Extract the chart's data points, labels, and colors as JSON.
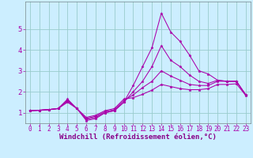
{
  "bg_color": "#cceeff",
  "line_color": "#aa00aa",
  "marker": "*",
  "xlabel": "Windchill (Refroidissement éolien,°C)",
  "xlabel_color": "#880088",
  "xlabel_fontsize": 6.5,
  "xtick_fontsize": 5.5,
  "ytick_fontsize": 6.5,
  "grid_color": "#99cccc",
  "xlim": [
    -0.5,
    23.5
  ],
  "ylim": [
    0.5,
    6.3
  ],
  "yticks": [
    1,
    2,
    3,
    4,
    5
  ],
  "xticks": [
    0,
    1,
    2,
    3,
    4,
    5,
    6,
    7,
    8,
    9,
    10,
    11,
    12,
    13,
    14,
    15,
    16,
    17,
    18,
    19,
    20,
    21,
    22,
    23
  ],
  "lines": [
    [
      1.1,
      1.12,
      1.15,
      1.2,
      1.65,
      1.2,
      0.63,
      0.72,
      1.0,
      1.1,
      1.5,
      2.3,
      3.2,
      4.1,
      5.75,
      4.85,
      4.4,
      3.75,
      3.0,
      2.85,
      2.55,
      2.5,
      2.5,
      1.85
    ],
    [
      1.1,
      1.12,
      1.15,
      1.2,
      1.6,
      1.2,
      0.68,
      0.78,
      1.0,
      1.1,
      1.5,
      2.0,
      2.5,
      3.2,
      4.2,
      3.5,
      3.2,
      2.8,
      2.5,
      2.4,
      2.55,
      2.5,
      2.5,
      1.85
    ],
    [
      1.1,
      1.12,
      1.15,
      1.2,
      1.55,
      1.2,
      0.73,
      0.83,
      1.05,
      1.15,
      1.58,
      1.85,
      2.2,
      2.5,
      3.0,
      2.75,
      2.55,
      2.35,
      2.3,
      2.3,
      2.5,
      2.5,
      2.5,
      1.85
    ],
    [
      1.1,
      1.12,
      1.15,
      1.2,
      1.5,
      1.2,
      0.78,
      0.88,
      1.1,
      1.2,
      1.65,
      1.72,
      1.88,
      2.08,
      2.35,
      2.25,
      2.15,
      2.1,
      2.1,
      2.15,
      2.35,
      2.35,
      2.38,
      1.82
    ]
  ]
}
